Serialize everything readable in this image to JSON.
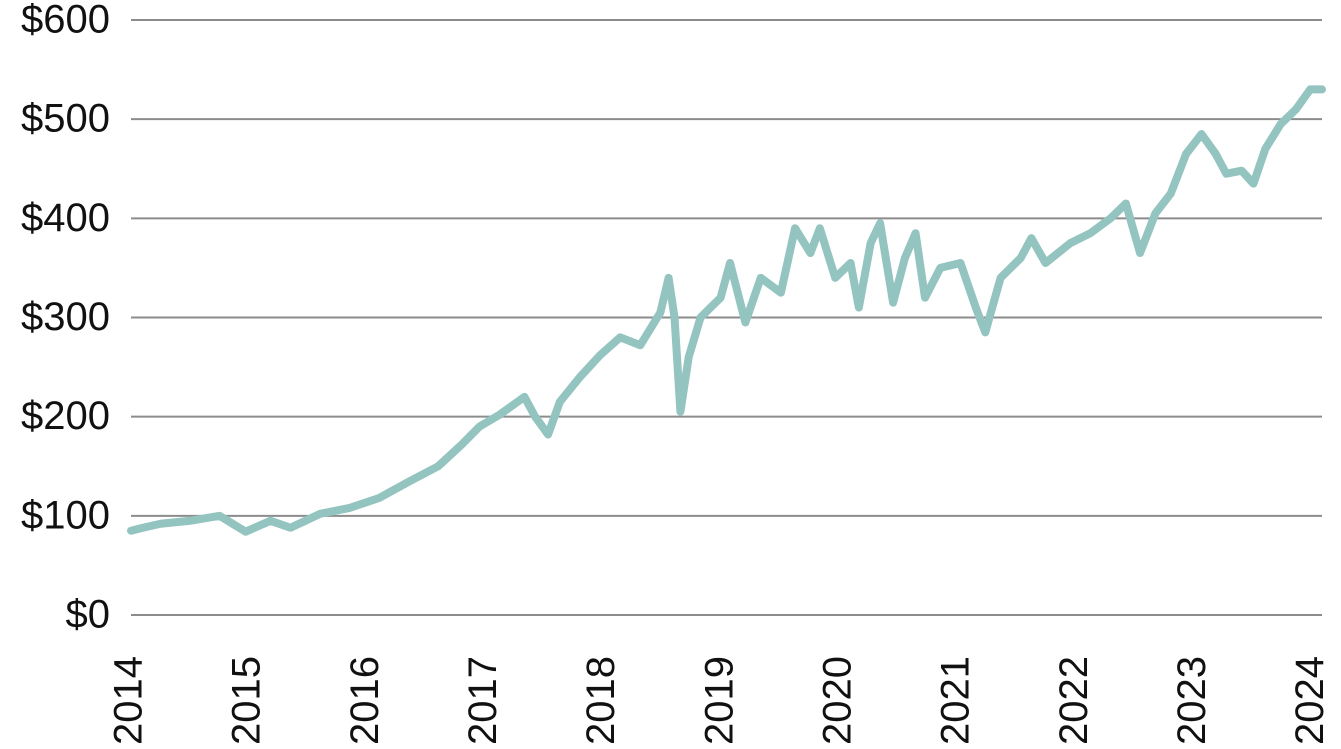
{
  "chart_data": {
    "type": "line",
    "x": [
      2014.0,
      2014.1,
      2014.25,
      2014.5,
      2014.75,
      2014.97,
      2015.18,
      2015.35,
      2015.6,
      2015.85,
      2016.1,
      2016.36,
      2016.6,
      2016.8,
      2016.95,
      2017.12,
      2017.33,
      2017.42,
      2017.53,
      2017.63,
      2017.8,
      2017.97,
      2018.14,
      2018.31,
      2018.48,
      2018.55,
      2018.6,
      2018.65,
      2018.72,
      2018.82,
      2018.99,
      2019.07,
      2019.2,
      2019.33,
      2019.5,
      2019.62,
      2019.75,
      2019.83,
      2019.96,
      2020.09,
      2020.16,
      2020.26,
      2020.34,
      2020.45,
      2020.55,
      2020.64,
      2020.72,
      2020.85,
      2021.02,
      2021.15,
      2021.23,
      2021.36,
      2021.53,
      2021.62,
      2021.74,
      2021.95,
      2022.12,
      2022.29,
      2022.42,
      2022.54,
      2022.67,
      2022.8,
      2022.93,
      2023.06,
      2023.18,
      2023.27,
      2023.4,
      2023.5,
      2023.6,
      2023.73,
      2023.86,
      2023.98,
      2024.08
    ],
    "series": [
      {
        "color": "#93c4c0",
        "values": [
          85,
          88,
          92,
          95,
          100,
          84,
          95,
          88,
          102,
          108,
          118,
          135,
          150,
          172,
          190,
          202,
          220,
          200,
          182,
          215,
          240,
          262,
          280,
          272,
          305,
          340,
          300,
          205,
          260,
          300,
          320,
          355,
          295,
          340,
          325,
          390,
          365,
          390,
          340,
          355,
          310,
          375,
          395,
          315,
          360,
          385,
          320,
          350,
          355,
          310,
          285,
          340,
          360,
          380,
          355,
          375,
          385,
          400,
          415,
          365,
          405,
          425,
          465,
          485,
          465,
          445,
          448,
          435,
          470,
          495,
          510,
          530,
          530
        ]
      }
    ],
    "xlim": [
      2014,
      2024.08
    ],
    "xticks": [
      2014,
      2015,
      2016,
      2017,
      2018,
      2019,
      2020,
      2021,
      2022,
      2023,
      2024
    ],
    "ylim": [
      0,
      600
    ],
    "yticks": [
      {
        "value": 0,
        "label": "$0"
      },
      {
        "value": 100,
        "label": "$100"
      },
      {
        "value": 200,
        "label": "$200"
      },
      {
        "value": 300,
        "label": "$300"
      },
      {
        "value": 400,
        "label": "$400"
      },
      {
        "value": 500,
        "label": "$500"
      },
      {
        "value": 600,
        "label": "$600"
      }
    ],
    "grid": true
  }
}
